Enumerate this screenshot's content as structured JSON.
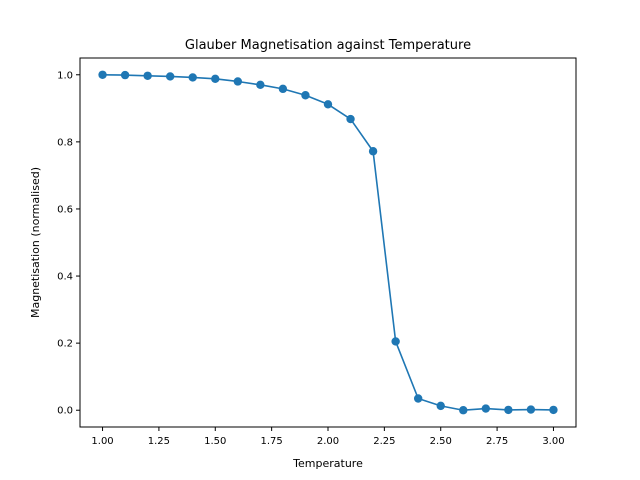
{
  "chart_data": {
    "type": "line",
    "title": "Glauber Magnetisation against Temperature",
    "xlabel": "Temperature",
    "ylabel": "Magnetisation (normalised)",
    "xlim": [
      0.9,
      3.1
    ],
    "ylim": [
      -0.05,
      1.05
    ],
    "xticks": [
      1.0,
      1.25,
      1.5,
      1.75,
      2.0,
      2.25,
      2.5,
      2.75,
      3.0
    ],
    "xtick_labels": [
      "1.00",
      "1.25",
      "1.50",
      "1.75",
      "2.00",
      "2.25",
      "2.50",
      "2.75",
      "3.00"
    ],
    "yticks": [
      0.0,
      0.2,
      0.4,
      0.6,
      0.8,
      1.0
    ],
    "ytick_labels": [
      "0.0",
      "0.2",
      "0.4",
      "0.6",
      "0.8",
      "1.0"
    ],
    "grid": false,
    "series": [
      {
        "color": "#1f77b4",
        "marker": "circle",
        "x": [
          1.0,
          1.1,
          1.2,
          1.3,
          1.4,
          1.5,
          1.6,
          1.7,
          1.8,
          1.9,
          2.0,
          2.1,
          2.2,
          2.3,
          2.4,
          2.5,
          2.6,
          2.7,
          2.8,
          2.9,
          3.0
        ],
        "y": [
          1.0,
          0.999,
          0.997,
          0.995,
          0.992,
          0.988,
          0.98,
          0.97,
          0.958,
          0.939,
          0.912,
          0.868,
          0.772,
          0.205,
          0.035,
          0.013,
          0.0,
          0.005,
          0.001,
          0.002,
          0.001
        ]
      }
    ]
  }
}
